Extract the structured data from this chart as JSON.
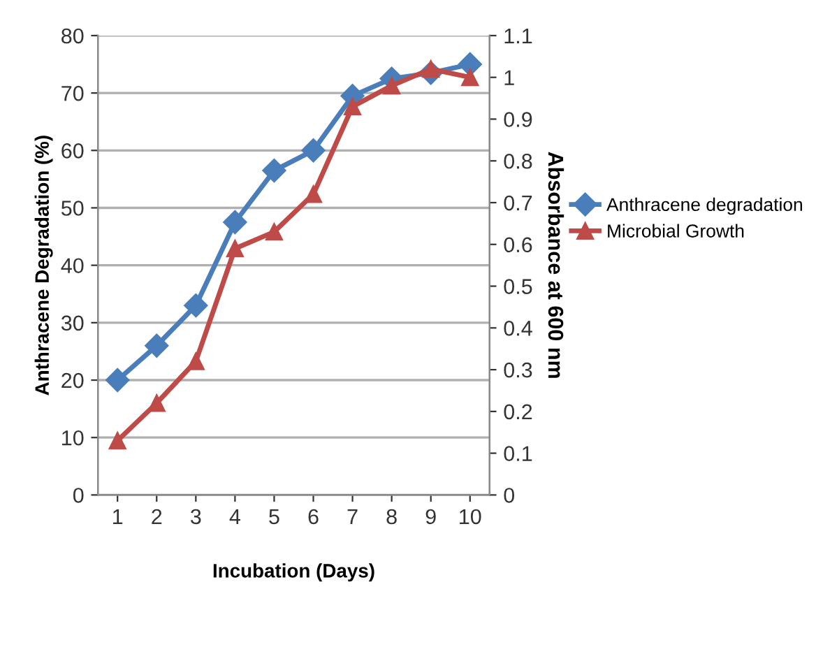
{
  "chart_data": {
    "type": "line",
    "xlabel": "Incubation (Days)",
    "ylabel": "Anthracene Degradation (%)",
    "y2label": "Absorbance at 600 nm",
    "categories": [
      "1",
      "2",
      "3",
      "4",
      "5",
      "6",
      "7",
      "8",
      "9",
      "10"
    ],
    "series": [
      {
        "name": "Anthracene degradation",
        "color": "#4a7ebb",
        "marker": "diamond",
        "values": [
          20,
          26,
          33,
          47.5,
          56.5,
          60,
          69.5,
          72.5,
          73.5,
          75
        ]
      },
      {
        "name": "Microbial Growth",
        "color": "#be4b48",
        "marker": "triangle",
        "axis": "y2",
        "values": [
          0.13,
          0.22,
          0.32,
          0.59,
          0.63,
          0.72,
          0.93,
          0.98,
          1.02,
          1.0
        ]
      }
    ],
    "ylim": [
      0,
      80
    ],
    "yticks": [
      0,
      10,
      20,
      30,
      40,
      50,
      60,
      70,
      80
    ],
    "y2lim": [
      0,
      1.1
    ],
    "y2ticks": [
      0,
      0.1,
      0.2,
      0.3,
      0.4,
      0.5,
      0.6,
      0.7,
      0.8,
      0.9,
      1,
      1.1
    ],
    "grid": "y",
    "legend": "right",
    "line_style": "solid"
  }
}
